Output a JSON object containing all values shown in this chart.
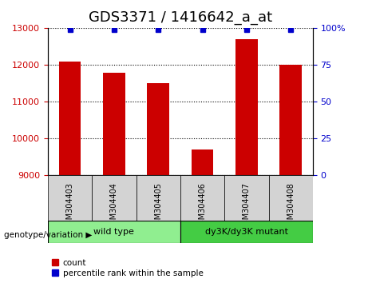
{
  "title": "GDS3371 / 1416642_a_at",
  "samples": [
    "GSM304403",
    "GSM304404",
    "GSM304405",
    "GSM304406",
    "GSM304407",
    "GSM304408"
  ],
  "counts": [
    12100,
    11800,
    11500,
    9700,
    12700,
    12000
  ],
  "percentile_ranks": [
    99,
    99,
    99,
    99,
    99,
    99
  ],
  "ylim_left": [
    9000,
    13000
  ],
  "ylim_right": [
    0,
    100
  ],
  "yticks_left": [
    9000,
    10000,
    11000,
    12000,
    13000
  ],
  "yticks_right": [
    0,
    25,
    50,
    75,
    100
  ],
  "bar_color": "#cc0000",
  "dot_color": "#0000cc",
  "groups": [
    {
      "label": "wild type",
      "indices": [
        0,
        1,
        2
      ],
      "color": "#90ee90"
    },
    {
      "label": "dy3K/dy3K mutant",
      "indices": [
        3,
        4,
        5
      ],
      "color": "#44cc44"
    }
  ],
  "genotype_label": "genotype/variation",
  "legend_count_label": "count",
  "legend_percentile_label": "percentile rank within the sample",
  "tick_bg_color": "#d3d3d3",
  "grid_style": "dotted",
  "title_fontsize": 13,
  "tick_fontsize": 8,
  "label_fontsize": 9
}
